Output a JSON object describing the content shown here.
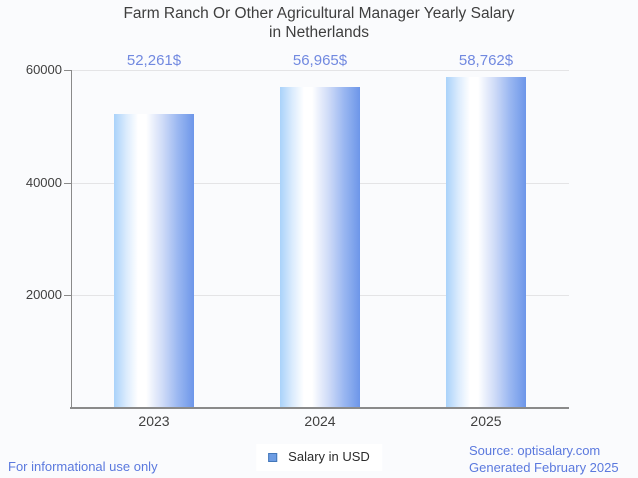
{
  "title": {
    "line1": "Farm Ranch Or Other Agricultural Manager Yearly Salary",
    "line2": "in Netherlands"
  },
  "chart_data": {
    "type": "bar",
    "title": "Farm Ranch Or Other Agricultural Manager Yearly Salary in Netherlands",
    "categories": [
      "2023",
      "2024",
      "2025"
    ],
    "values": [
      52261,
      56965,
      58762
    ],
    "value_labels": [
      "52,261$",
      "56,965$",
      "58,762$"
    ],
    "series_name": "Salary in USD",
    "xlabel": "",
    "ylabel": "",
    "ylim": [
      0,
      60000
    ],
    "yticks": [
      20000,
      40000,
      60000
    ],
    "ytick_labels": [
      "20000",
      "40000",
      "60000"
    ],
    "grid": true,
    "legend_position": "bottom"
  },
  "legend": {
    "label": "Salary in USD"
  },
  "footer": {
    "disclaimer": "For informational use only",
    "source": "Source: optisalary.com",
    "generated": "Generated February 2025"
  },
  "colors": {
    "background": "#fafbfd",
    "title_text": "#3e3e3e",
    "tick_text": "#404040",
    "value_label_text": "#7189e0",
    "footer_text": "#5b79de",
    "legend_text": "#2b2b2b",
    "gridline": "#e4e4e6",
    "axis_line": "#8a8a8a",
    "legend_swatch_fill": "#6d9ce3",
    "legend_swatch_border": "#4377b9",
    "bar_gradient_stops": [
      "#a9d2fa 0%",
      "#dcecfd 16%",
      "#ffffff 30%",
      "#ffffff 40%",
      "#ccd9f7 62%",
      "#9ab7f1 80%",
      "#6d96e9 100%"
    ]
  }
}
